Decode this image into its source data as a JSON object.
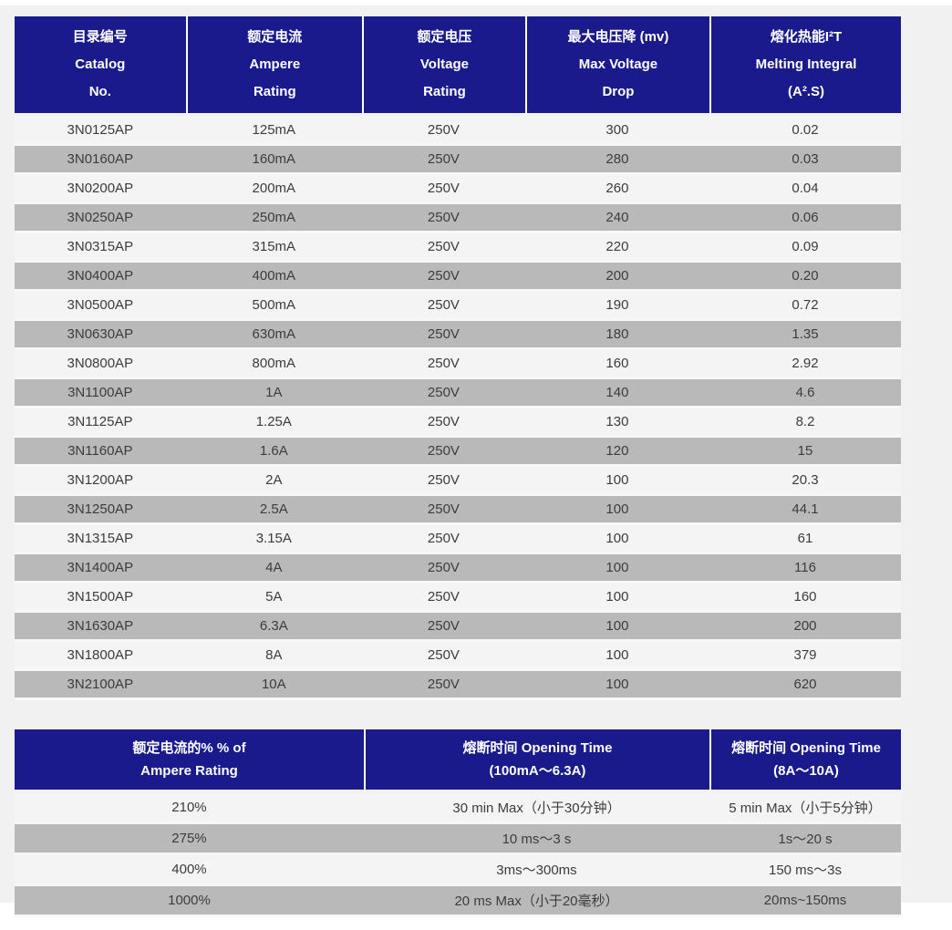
{
  "colors": {
    "header_bg": "#1a1a8c",
    "header_text": "#ffffff",
    "row_light": "#f4f4f4",
    "row_gray": "#b9b9b9",
    "panel_bg": "#f1f1f1",
    "data_text": "#3c3c3c"
  },
  "table1": {
    "col_widths": [
      "19.3%",
      "19.9%",
      "18.4%",
      "20.8%",
      "21.6%"
    ],
    "columns": [
      {
        "lines": [
          "目录编号",
          "Catalog",
          "No."
        ]
      },
      {
        "lines": [
          "额定电流",
          "Ampere",
          "Rating"
        ]
      },
      {
        "lines": [
          "额定电压",
          "Voltage",
          "Rating"
        ]
      },
      {
        "lines": [
          "最大电压降 (mv)",
          "Max Voltage",
          "Drop"
        ]
      },
      {
        "lines": [
          "熔化热能I²T",
          "Melting Integral",
          "(A².S)"
        ]
      }
    ],
    "rows": [
      [
        "3N0125AP",
        "125mA",
        "250V",
        "300",
        "0.02"
      ],
      [
        "3N0160AP",
        "160mA",
        "250V",
        "280",
        "0.03"
      ],
      [
        "3N0200AP",
        "200mA",
        "250V",
        "260",
        "0.04"
      ],
      [
        "3N0250AP",
        "250mA",
        "250V",
        "240",
        "0.06"
      ],
      [
        "3N0315AP",
        "315mA",
        "250V",
        "220",
        "0.09"
      ],
      [
        "3N0400AP",
        "400mA",
        "250V",
        "200",
        "0.20"
      ],
      [
        "3N0500AP",
        "500mA",
        "250V",
        "190",
        "0.72"
      ],
      [
        "3N0630AP",
        "630mA",
        "250V",
        "180",
        "1.35"
      ],
      [
        "3N0800AP",
        "800mA",
        "250V",
        "160",
        "2.92"
      ],
      [
        "3N1100AP",
        "1A",
        "250V",
        "140",
        "4.6"
      ],
      [
        "3N1125AP",
        "1.25A",
        "250V",
        "130",
        "8.2"
      ],
      [
        "3N1160AP",
        "1.6A",
        "250V",
        "120",
        "15"
      ],
      [
        "3N1200AP",
        "2A",
        "250V",
        "100",
        "20.3"
      ],
      [
        "3N1250AP",
        "2.5A",
        "250V",
        "100",
        "44.1"
      ],
      [
        "3N1315AP",
        "3.15A",
        "250V",
        "100",
        "61"
      ],
      [
        "3N1400AP",
        "4A",
        "250V",
        "100",
        "116"
      ],
      [
        "3N1500AP",
        "5A",
        "250V",
        "100",
        "160"
      ],
      [
        "3N1630AP",
        "6.3A",
        "250V",
        "100",
        "200"
      ],
      [
        "3N1800AP",
        "8A",
        "250V",
        "100",
        "379"
      ],
      [
        "3N2100AP",
        "10A",
        "250V",
        "100",
        "620"
      ]
    ]
  },
  "table2": {
    "col_widths": [
      "39.4%",
      "39.0%",
      "21.6%"
    ],
    "columns": [
      {
        "lines": [
          "额定电流的%  % of",
          "Ampere Rating"
        ]
      },
      {
        "lines": [
          "熔断时间 Opening Time",
          "(100mA～6.3A)"
        ]
      },
      {
        "lines": [
          "熔断时间 Opening Time",
          "(8A～10A)"
        ]
      }
    ],
    "rows": [
      [
        "210%",
        "30 min Max（小于30分钟）",
        "5 min Max（小于5分钟）"
      ],
      [
        "275%",
        "10 ms～3 s",
        "1s～20 s"
      ],
      [
        "400%",
        "3ms～300ms",
        "150 ms～3s"
      ],
      [
        "1000%",
        "20 ms Max（小于20毫秒）",
        "20ms~150ms"
      ]
    ]
  }
}
